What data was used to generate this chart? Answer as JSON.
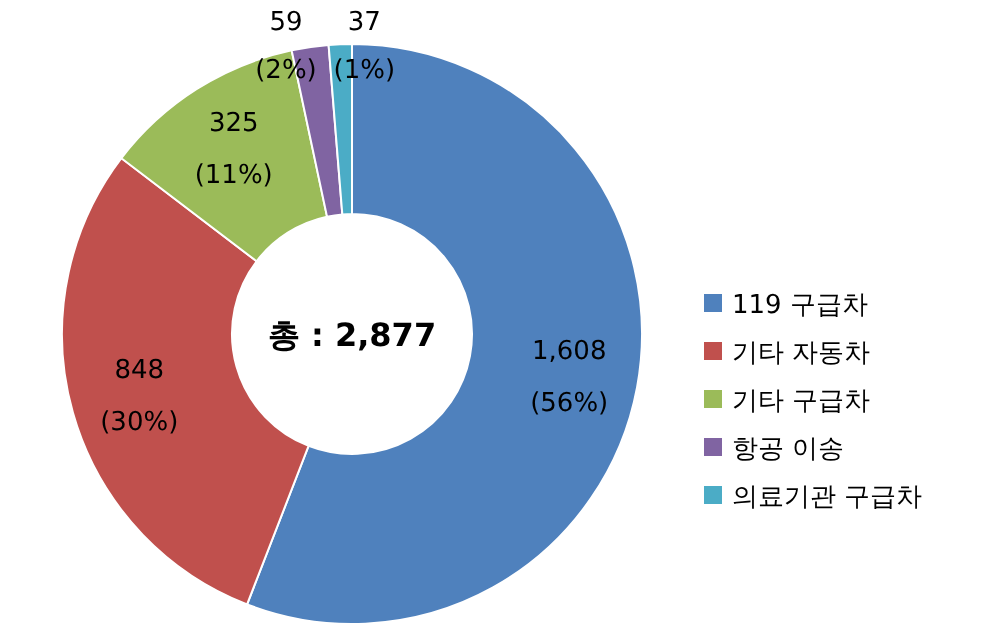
{
  "chart_data": {
    "type": "donut",
    "categories": [
      "119 구급차",
      "기타 자동차",
      "기타 구급차",
      "항공 이송",
      "의료기관 구급차"
    ],
    "values": [
      1608,
      848,
      325,
      59,
      37
    ],
    "colors": [
      "#4f81bd",
      "#c0504d",
      "#9bbb59",
      "#8064a2",
      "#4bacc6"
    ],
    "value_labels": [
      "1,608 (56%)",
      "848 (30%)",
      "325 (11%)",
      "59 (2%)",
      "37 (1%)"
    ],
    "annotations": [
      "총 : 2,877"
    ],
    "legend": "right"
  }
}
